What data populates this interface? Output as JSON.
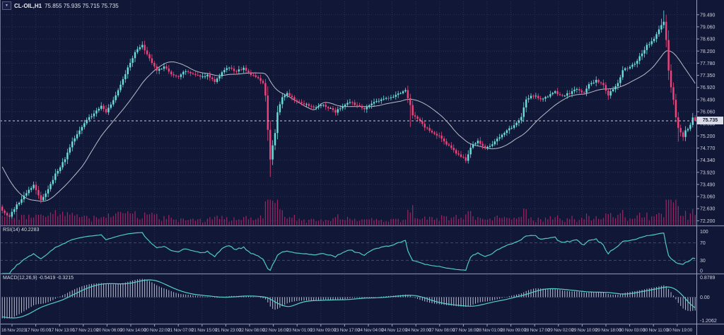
{
  "header": {
    "symbol": "CL-OIL,H1",
    "ohlc": "75.855 75.935 75.715 75.735",
    "dropdown_glyph": "▼"
  },
  "main_chart": {
    "price_axis": [
      "79.490",
      "79.060",
      "78.630",
      "78.200",
      "77.780",
      "77.350",
      "76.920",
      "76.490",
      "76.060",
      "75.630",
      "75.200",
      "74.770",
      "74.340",
      "73.920",
      "73.490",
      "73.060",
      "72.630",
      "72.200"
    ],
    "current_price": "75.735"
  },
  "rsi_panel": {
    "label": "RSI(14) 40.2283",
    "axis": [
      "100",
      "70",
      "30",
      "0"
    ]
  },
  "macd_panel": {
    "label": "MACD(12,26,9) -0.5419 -0.3215",
    "axis": [
      "0.8789",
      "0.00",
      "-1.2062"
    ]
  },
  "time_axis": [
    "16 Nov 2023",
    "17 Nov 05:00",
    "17 Nov 13:00",
    "17 Nov 21:00",
    "20 Nov 06:00",
    "20 Nov 14:00",
    "20 Nov 22:00",
    "21 Nov 07:00",
    "21 Nov 15:00",
    "21 Nov 23:00",
    "22 Nov 08:00",
    "22 Nov 16:00",
    "23 Nov 01:00",
    "23 Nov 09:00",
    "23 Nov 17:00",
    "24 Nov 04:00",
    "24 Nov 12:00",
    "24 Nov 20:00",
    "27 Nov 08:00",
    "27 Nov 16:00",
    "28 Nov 01:00",
    "28 Nov 09:00",
    "28 Nov 17:00",
    "29 Nov 02:00",
    "29 Nov 10:00",
    "29 Nov 18:00",
    "30 Nov 03:00",
    "30 Nov 11:00",
    "30 Nov 19:00"
  ],
  "chart_data": {
    "type": "candlestick",
    "symbol": "CL-OIL",
    "timeframe": "H1",
    "panels": [
      "price+volume",
      "RSI",
      "MACD"
    ],
    "ohlc_current": {
      "open": 75.855,
      "high": 75.935,
      "low": 75.715,
      "close": 75.735
    },
    "ylim": [
      72.05,
      79.76
    ],
    "price_tick_step": 0.43,
    "candle_count": 288,
    "indicators": [
      {
        "name": "RSI",
        "period": 14,
        "value": 40.2283,
        "levels": [
          70,
          30
        ],
        "range": [
          0,
          100
        ]
      },
      {
        "name": "MACD",
        "params": [
          12,
          26,
          9
        ],
        "value": -0.5419,
        "signal": -0.3215,
        "axis_max": 0.8789,
        "axis_min": -1.2062
      },
      {
        "name": "MA",
        "period": 20
      }
    ],
    "close_path_anchors": [
      [
        0,
        72.55
      ],
      [
        3,
        72.35
      ],
      [
        6,
        72.75
      ],
      [
        10,
        73.2
      ],
      [
        13,
        73.45
      ],
      [
        16,
        72.95
      ],
      [
        19,
        73.3
      ],
      [
        22,
        73.85
      ],
      [
        26,
        74.4
      ],
      [
        29,
        75.0
      ],
      [
        32,
        75.4
      ],
      [
        35,
        75.75
      ],
      [
        38,
        76.0
      ],
      [
        41,
        76.25
      ],
      [
        43,
        76.05
      ],
      [
        46,
        76.45
      ],
      [
        49,
        77.0
      ],
      [
        52,
        77.6
      ],
      [
        55,
        78.15
      ],
      [
        58,
        78.42
      ],
      [
        60,
        78.1
      ],
      [
        62,
        77.75
      ],
      [
        64,
        77.5
      ],
      [
        67,
        77.65
      ],
      [
        70,
        77.4
      ],
      [
        73,
        77.28
      ],
      [
        76,
        77.52
      ],
      [
        79,
        77.4
      ],
      [
        82,
        77.28
      ],
      [
        85,
        77.36
      ],
      [
        88,
        77.12
      ],
      [
        91,
        77.46
      ],
      [
        94,
        77.62
      ],
      [
        97,
        77.48
      ],
      [
        100,
        77.6
      ],
      [
        103,
        77.36
      ],
      [
        106,
        77.24
      ],
      [
        108,
        77.05
      ],
      [
        109,
        76.6
      ],
      [
        110,
        75.4
      ],
      [
        111,
        74.35
      ],
      [
        112,
        74.85
      ],
      [
        113,
        75.3
      ],
      [
        114,
        76.05
      ],
      [
        116,
        76.55
      ],
      [
        118,
        76.72
      ],
      [
        121,
        76.48
      ],
      [
        124,
        76.38
      ],
      [
        127,
        76.28
      ],
      [
        130,
        76.18
      ],
      [
        132,
        76.32
      ],
      [
        135,
        76.2
      ],
      [
        138,
        76.06
      ],
      [
        141,
        76.28
      ],
      [
        144,
        76.4
      ],
      [
        147,
        76.28
      ],
      [
        150,
        76.18
      ],
      [
        153,
        76.34
      ],
      [
        156,
        76.44
      ],
      [
        159,
        76.52
      ],
      [
        162,
        76.62
      ],
      [
        165,
        76.72
      ],
      [
        167,
        76.82
      ],
      [
        169,
        76.3
      ],
      [
        170,
        75.92
      ],
      [
        172,
        75.8
      ],
      [
        175,
        75.52
      ],
      [
        178,
        75.3
      ],
      [
        181,
        75.18
      ],
      [
        184,
        74.92
      ],
      [
        187,
        74.68
      ],
      [
        190,
        74.48
      ],
      [
        192,
        74.35
      ],
      [
        194,
        74.8
      ],
      [
        197,
        75.02
      ],
      [
        200,
        74.8
      ],
      [
        203,
        74.92
      ],
      [
        206,
        75.18
      ],
      [
        209,
        75.42
      ],
      [
        212,
        75.55
      ],
      [
        215,
        75.85
      ],
      [
        217,
        76.5
      ],
      [
        220,
        76.65
      ],
      [
        223,
        76.5
      ],
      [
        226,
        76.62
      ],
      [
        229,
        76.75
      ],
      [
        232,
        76.62
      ],
      [
        235,
        76.72
      ],
      [
        238,
        76.86
      ],
      [
        241,
        76.72
      ],
      [
        243,
        77.0
      ],
      [
        246,
        77.18
      ],
      [
        249,
        77.0
      ],
      [
        251,
        76.62
      ],
      [
        253,
        76.88
      ],
      [
        255,
        77.1
      ],
      [
        257,
        77.5
      ],
      [
        259,
        77.62
      ],
      [
        262,
        77.78
      ],
      [
        264,
        78.0
      ],
      [
        267,
        78.4
      ],
      [
        270,
        78.62
      ],
      [
        272,
        79.0
      ],
      [
        274,
        79.26
      ],
      [
        275,
        78.6
      ],
      [
        276,
        77.5
      ],
      [
        277,
        76.9
      ],
      [
        278,
        76.5
      ],
      [
        279,
        75.85
      ],
      [
        280,
        75.5
      ],
      [
        281,
        75.3
      ],
      [
        282,
        75.18
      ],
      [
        283,
        75.4
      ],
      [
        284,
        75.45
      ],
      [
        285,
        75.6
      ],
      [
        286,
        75.855
      ],
      [
        287,
        75.735
      ]
    ],
    "wick_spikes": {
      "58": {
        "high": 78.55
      },
      "111": {
        "low": 73.75
      },
      "169": {
        "low": 75.52
      },
      "273": {
        "high": 79.35
      },
      "274": {
        "high": 79.64
      },
      "280": {
        "low": 75.0
      }
    },
    "colors": {
      "background": "#111736",
      "grid": "#2a3158",
      "bull": "#69e0dc",
      "bear": "#f1437b",
      "volume": "#a12462",
      "ma": "#b9bcc9",
      "rsi": "#4ecbc6",
      "macd_signal": "#56d0cb",
      "macd_hist": "#c9cede",
      "axis_text": "#ced2e3",
      "separator": "#7e84a0",
      "price_line": "#c6c9d6",
      "level_line": "#40486e"
    }
  }
}
